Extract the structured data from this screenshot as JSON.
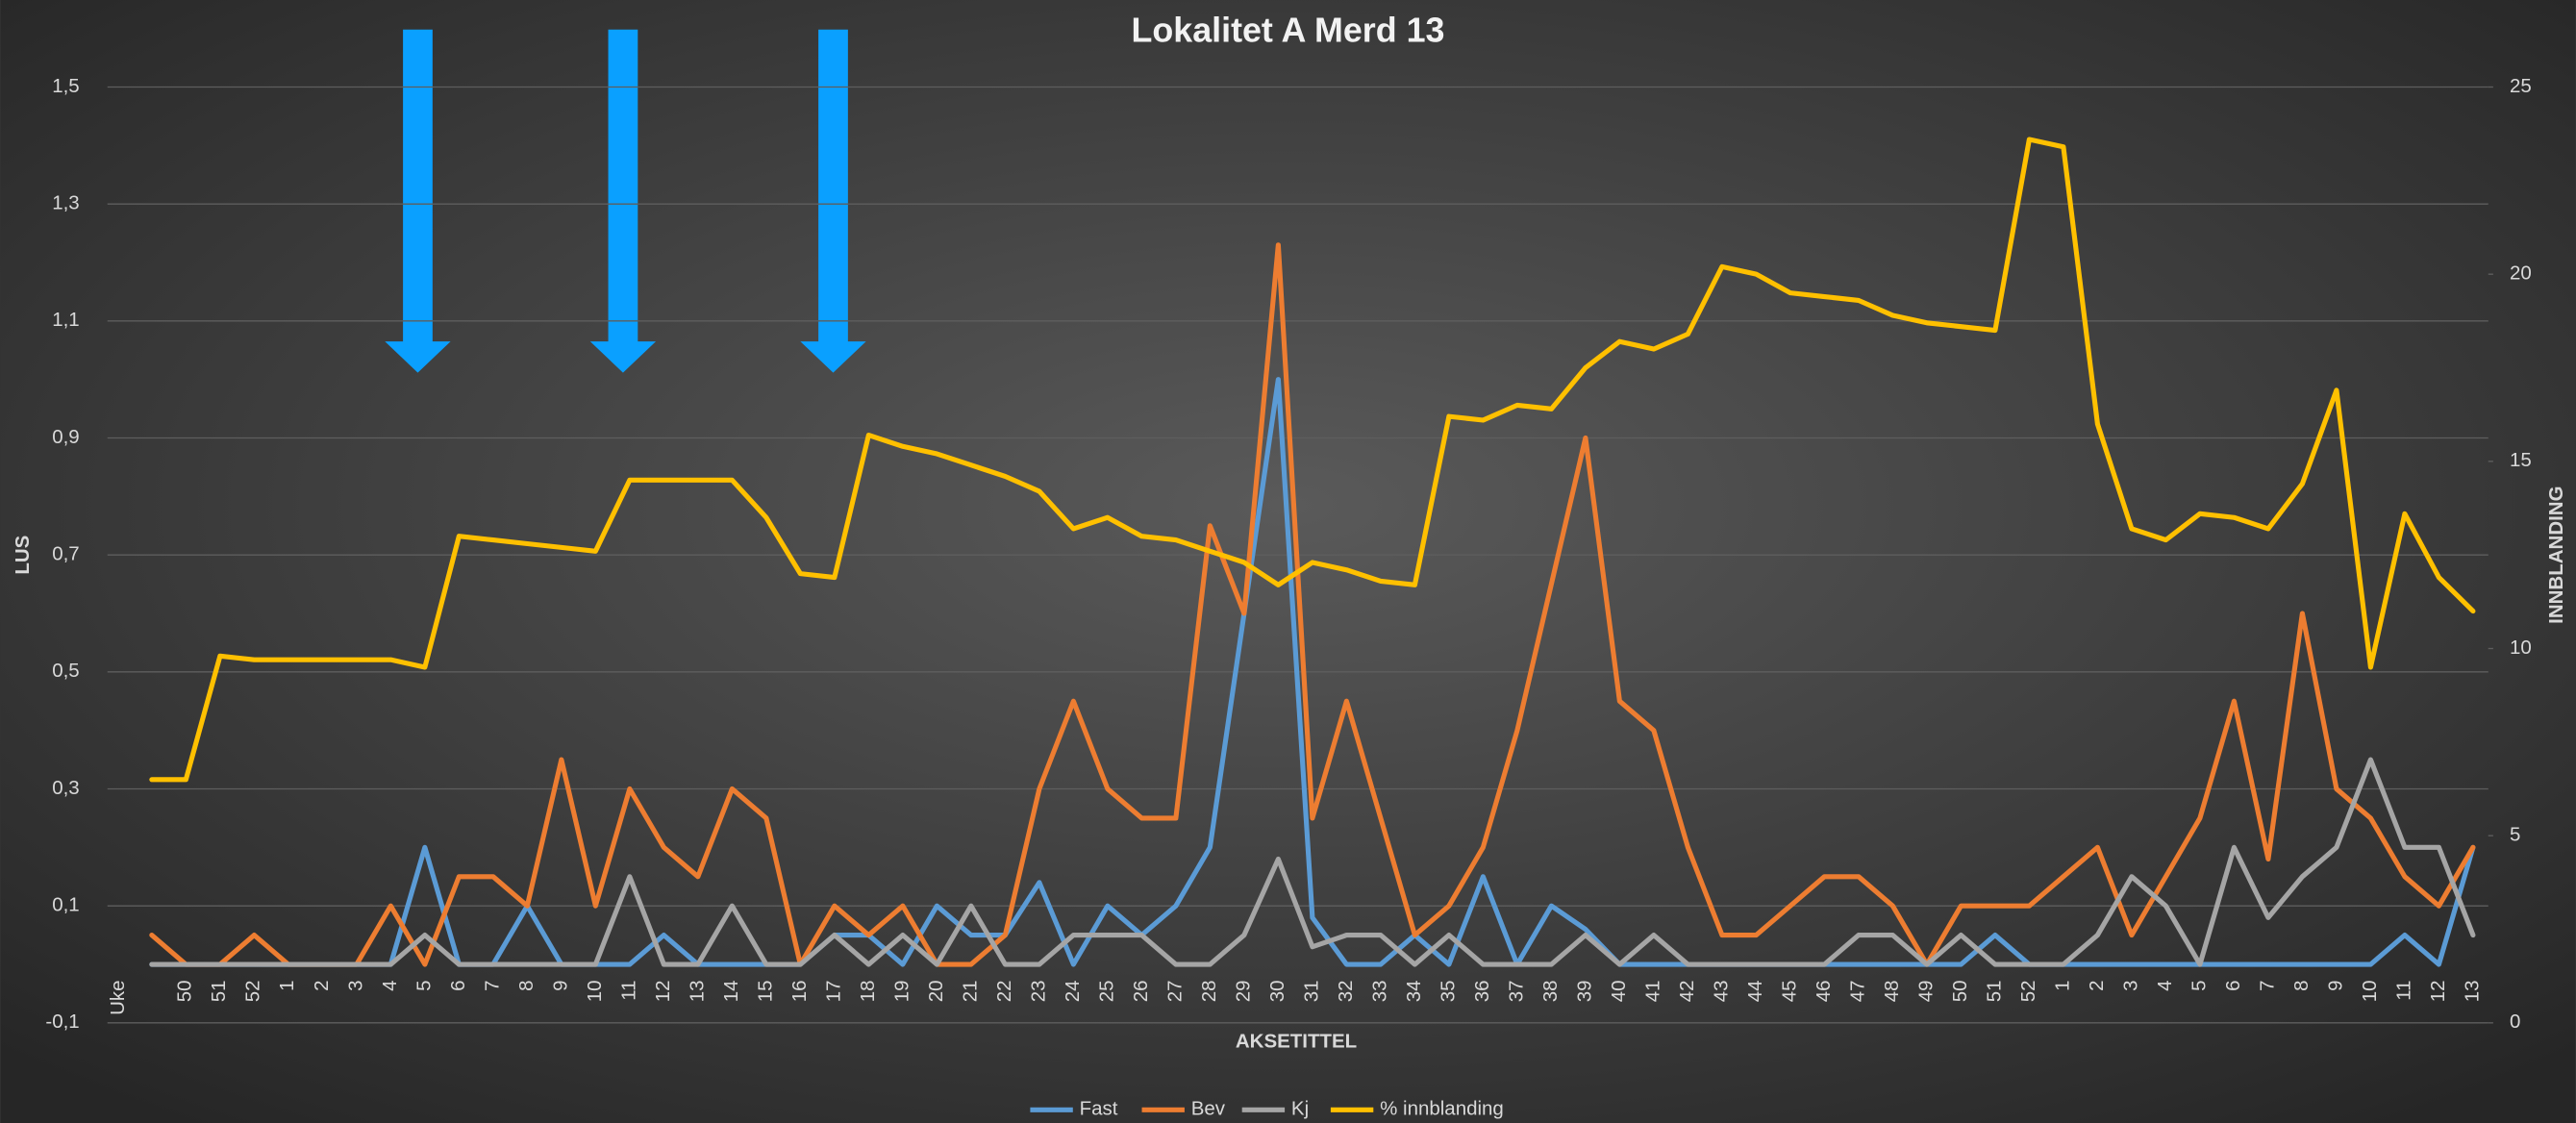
{
  "chart_data": {
    "type": "line",
    "title": "Lokalitet  A  Merd 13",
    "x_label": "AKSETITTEL",
    "y_label": "LUS",
    "y2_label": "INNBLANDING",
    "categories": [
      "Uke",
      "50",
      "51",
      "52",
      "1",
      "2",
      "3",
      "4",
      "5",
      "6",
      "7",
      "8",
      "9",
      "10",
      "11",
      "12",
      "13",
      "14",
      "15",
      "16",
      "17",
      "18",
      "19",
      "20",
      "21",
      "22",
      "23",
      "24",
      "25",
      "26",
      "27",
      "28",
      "29",
      "30",
      "31",
      "32",
      "33",
      "34",
      "35",
      "36",
      "37",
      "38",
      "39",
      "40",
      "41",
      "42",
      "43",
      "44",
      "45",
      "46",
      "47",
      "48",
      "49",
      "50",
      "51",
      "52",
      "1",
      "2",
      "3",
      "4",
      "5",
      "6",
      "7",
      "8",
      "9",
      "10",
      "11",
      "12",
      "13"
    ],
    "ylim": [
      -0.1,
      1.5
    ],
    "yticks": [
      {
        "value": -0.1,
        "label": "-0,1"
      },
      {
        "value": 0.1,
        "label": "0,1"
      },
      {
        "value": 0.3,
        "label": "0,3"
      },
      {
        "value": 0.5,
        "label": "0,5"
      },
      {
        "value": 0.7,
        "label": "0,7"
      },
      {
        "value": 0.9,
        "label": "0,9"
      },
      {
        "value": 1.1,
        "label": "1,1"
      },
      {
        "value": 1.3,
        "label": "1,3"
      },
      {
        "value": 1.5,
        "label": "1,5"
      }
    ],
    "y2lim": [
      0,
      25
    ],
    "y2ticks": [
      0,
      5,
      10,
      15,
      20,
      25
    ],
    "grid": true,
    "legend": "bottom",
    "series": [
      {
        "name": "Fast",
        "color": "#5b9bd5",
        "values": [
          0,
          0,
          0,
          0,
          0,
          0,
          0,
          0,
          0.2,
          0,
          0,
          0.1,
          0,
          0,
          0,
          0.05,
          0,
          0,
          0,
          0,
          0.05,
          0.05,
          0,
          0.1,
          0.05,
          0.05,
          0.14,
          0,
          0.1,
          0.05,
          0.1,
          0.2,
          0.6,
          1.0,
          0.08,
          0,
          0,
          0.05,
          0,
          0.15,
          0,
          0.1,
          0.06,
          0,
          0,
          0,
          0,
          0,
          0,
          0,
          0,
          0,
          0,
          0,
          0.05,
          0,
          0,
          0,
          0,
          0,
          0,
          0,
          0,
          0,
          0,
          0,
          0.05,
          0,
          0.2
        ]
      },
      {
        "name": "Bev",
        "color": "#ed7d31",
        "values": [
          0.05,
          0,
          0,
          0.05,
          0,
          0,
          0,
          0.1,
          0,
          0.15,
          0.15,
          0.1,
          0.35,
          0.1,
          0.3,
          0.2,
          0.15,
          0.3,
          0.25,
          0,
          0.1,
          0.05,
          0.1,
          0,
          0,
          0.05,
          0.3,
          0.45,
          0.3,
          0.25,
          0.25,
          0.75,
          0.6,
          1.23,
          0.25,
          0.45,
          0.25,
          0.05,
          0.1,
          0.2,
          0.4,
          0.65,
          0.9,
          0.45,
          0.4,
          0.2,
          0.05,
          0.05,
          0.1,
          0.15,
          0.15,
          0.1,
          0,
          0.1,
          0.1,
          0.1,
          0.15,
          0.2,
          0.05,
          0.15,
          0.25,
          0.45,
          0.18,
          0.6,
          0.3,
          0.25,
          0.15,
          0.1,
          0.2
        ]
      },
      {
        "name": "Kj",
        "color": "#a5a5a5",
        "values": [
          0,
          0,
          0,
          0,
          0,
          0,
          0,
          0,
          0.05,
          0,
          0,
          0,
          0,
          0,
          0.15,
          0,
          0,
          0.1,
          0,
          0,
          0.05,
          0,
          0.05,
          0,
          0.1,
          0,
          0,
          0.05,
          0.05,
          0.05,
          0,
          0,
          0.05,
          0.18,
          0.03,
          0.05,
          0.05,
          0,
          0.05,
          0,
          0,
          0,
          0.05,
          0,
          0.05,
          0,
          0,
          0,
          0,
          0,
          0.05,
          0.05,
          0,
          0.05,
          0,
          0,
          0,
          0.05,
          0.15,
          0.1,
          0,
          0.2,
          0.08,
          0.15,
          0.2,
          0.35,
          0.2,
          0.2,
          0.05
        ]
      },
      {
        "name": "% innblanding",
        "color": "#ffc000",
        "axis": "y2",
        "values": [
          6.5,
          6.5,
          9.8,
          9.7,
          9.7,
          9.7,
          9.7,
          9.7,
          9.5,
          13.0,
          12.9,
          12.8,
          12.7,
          12.6,
          14.5,
          14.5,
          14.5,
          14.5,
          13.5,
          12.0,
          11.9,
          15.7,
          15.4,
          15.2,
          14.9,
          14.6,
          14.2,
          13.2,
          13.5,
          13.0,
          12.9,
          12.6,
          12.3,
          11.7,
          12.3,
          12.1,
          11.8,
          11.7,
          16.2,
          16.1,
          16.5,
          16.4,
          17.5,
          18.2,
          18.0,
          18.4,
          20.2,
          20.0,
          19.5,
          19.4,
          19.3,
          18.9,
          18.7,
          18.6,
          18.5,
          23.6,
          23.4,
          16.0,
          13.2,
          12.9,
          13.6,
          13.5,
          13.2,
          14.4,
          16.9,
          9.5,
          13.6,
          11.9,
          11.0
        ]
      }
    ]
  }
}
